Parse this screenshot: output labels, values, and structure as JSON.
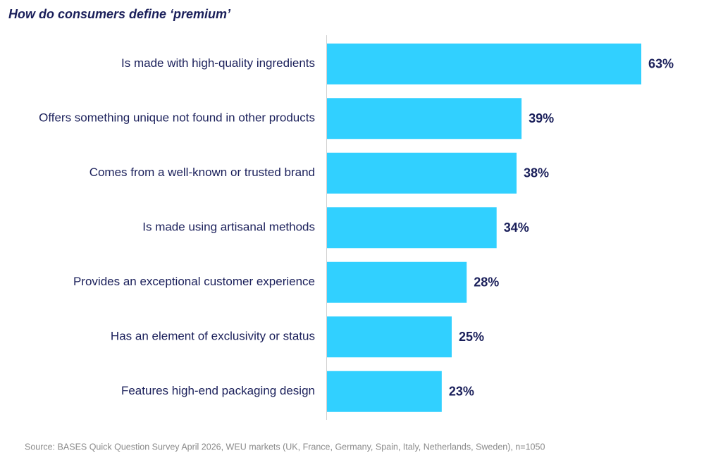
{
  "chart_data": {
    "type": "bar",
    "orientation": "horizontal",
    "title": "How do consumers define ‘premium’",
    "categories": [
      "Is made with high-quality ingredients",
      "Offers something unique not found in other products",
      "Comes from a well-known or trusted brand",
      "Is made using artisanal methods",
      "Provides an exceptional customer experience",
      "Has an element of exclusivity or status",
      "Features high-end packaging design"
    ],
    "values": [
      63,
      39,
      38,
      34,
      28,
      25,
      23
    ],
    "value_labels": [
      "63%",
      "39%",
      "38%",
      "34%",
      "28%",
      "25%",
      "23%"
    ],
    "color": "#31d0ff",
    "source": "Source: BASES Quick Question Survey April 2026, WEU markets (UK, France, Germany, Spain, Italy, Netherlands, Sweden), n=1050"
  }
}
